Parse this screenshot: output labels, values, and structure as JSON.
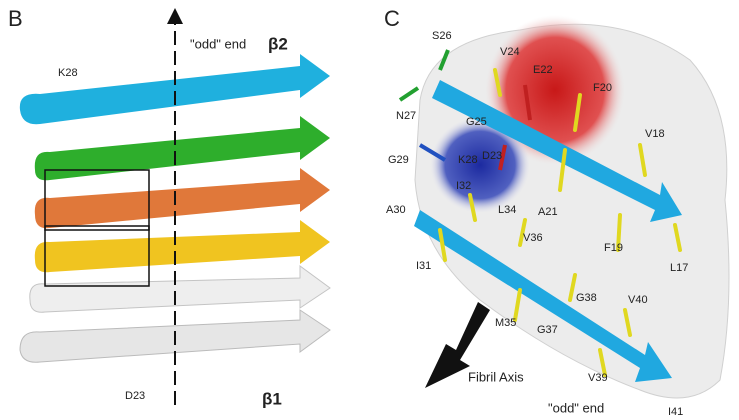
{
  "panel_b": {
    "letter": "B",
    "labels": [
      "\"odd\" end",
      "β2",
      "K28",
      "D23",
      "β1"
    ]
  },
  "panel_c": {
    "letter": "C",
    "labels": [
      "S26",
      "V24",
      "E22",
      "F20",
      "N27",
      "G25",
      "D23",
      "K28",
      "G29",
      "I32",
      "V18",
      "A30",
      "L34",
      "A21",
      "V36",
      "F19",
      "L17",
      "I31",
      "G38",
      "V40",
      "M35",
      "G37",
      "V39",
      "Fibril Axis",
      "\"odd\" end",
      "I41"
    ]
  }
}
